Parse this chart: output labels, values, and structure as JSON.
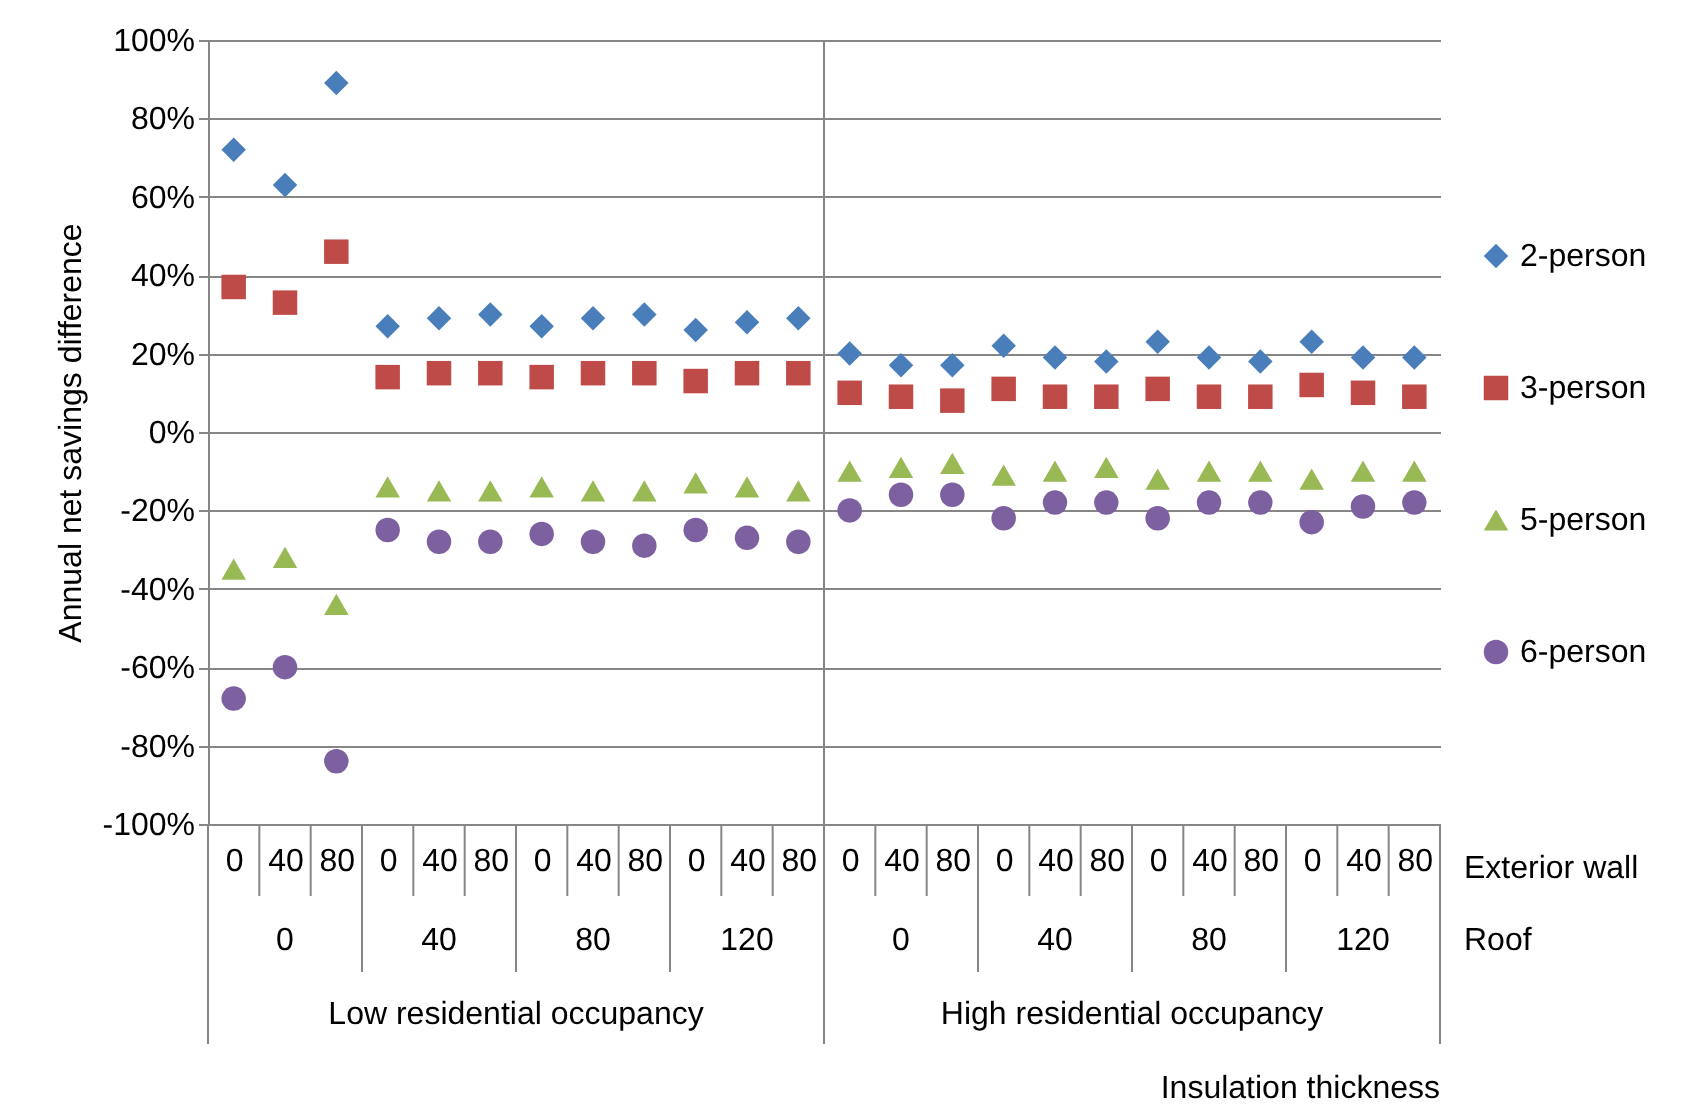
{
  "chart_data": {
    "type": "scatter",
    "ylabel": "Annual net savings difference",
    "categories": [
      "0",
      "40",
      "80",
      "0",
      "40",
      "80",
      "0",
      "40",
      "80",
      "0",
      "40",
      "80",
      "0",
      "40",
      "80",
      "0",
      "40",
      "80",
      "0",
      "40",
      "80",
      "0",
      "40",
      "80"
    ],
    "annotations": [
      "Exterior wall",
      "Roof",
      "0",
      "40",
      "80",
      "120",
      "0",
      "40",
      "80",
      "120",
      "Low residential occupancy",
      "High residential occupancy",
      "Insulation thickness"
    ],
    "series": [
      {
        "name": "2-person",
        "color": "#4a7ebb",
        "marker": "diamond",
        "values": [
          72,
          63,
          89,
          27,
          29,
          30,
          27,
          29,
          30,
          26,
          28,
          29,
          20,
          17,
          17,
          22,
          19,
          18,
          23,
          19,
          18,
          23,
          19,
          19
        ]
      },
      {
        "name": "3-person",
        "color": "#be4b48",
        "marker": "square",
        "values": [
          37,
          33,
          46,
          14,
          15,
          15,
          14,
          15,
          15,
          13,
          15,
          15,
          10,
          9,
          8,
          11,
          9,
          9,
          11,
          9,
          9,
          12,
          10,
          9
        ]
      },
      {
        "name": "5-person",
        "color": "#98b954",
        "marker": "triangle",
        "values": [
          -35,
          -32,
          -44,
          -14,
          -15,
          -15,
          -14,
          -15,
          -15,
          -13,
          -14,
          -15,
          -10,
          -9,
          -8,
          -11,
          -10,
          -9,
          -12,
          -10,
          -10,
          -12,
          -10,
          -10
        ]
      },
      {
        "name": "6-person",
        "color": "#7d60a0",
        "marker": "circle",
        "values": [
          -68,
          -60,
          -84,
          -25,
          -28,
          -28,
          -26,
          -28,
          -29,
          -25,
          -27,
          -28,
          -20,
          -16,
          -16,
          -22,
          -18,
          -18,
          -22,
          -18,
          -18,
          -23,
          -19,
          -18
        ]
      }
    ],
    "ylim": [
      -100,
      100
    ],
    "yticks": [
      {
        "value": -100,
        "label": "-100%"
      },
      {
        "value": -80,
        "label": "-80%"
      },
      {
        "value": -60,
        "label": "-60%"
      },
      {
        "value": -40,
        "label": "-40%"
      },
      {
        "value": -20,
        "label": "-20%"
      },
      {
        "value": 0,
        "label": "0%"
      },
      {
        "value": 20,
        "label": "20%"
      },
      {
        "value": 40,
        "label": "40%"
      },
      {
        "value": 60,
        "label": "60%"
      },
      {
        "value": 80,
        "label": "80%"
      },
      {
        "value": 100,
        "label": "100%"
      }
    ],
    "grid": "y",
    "legend": "right"
  }
}
